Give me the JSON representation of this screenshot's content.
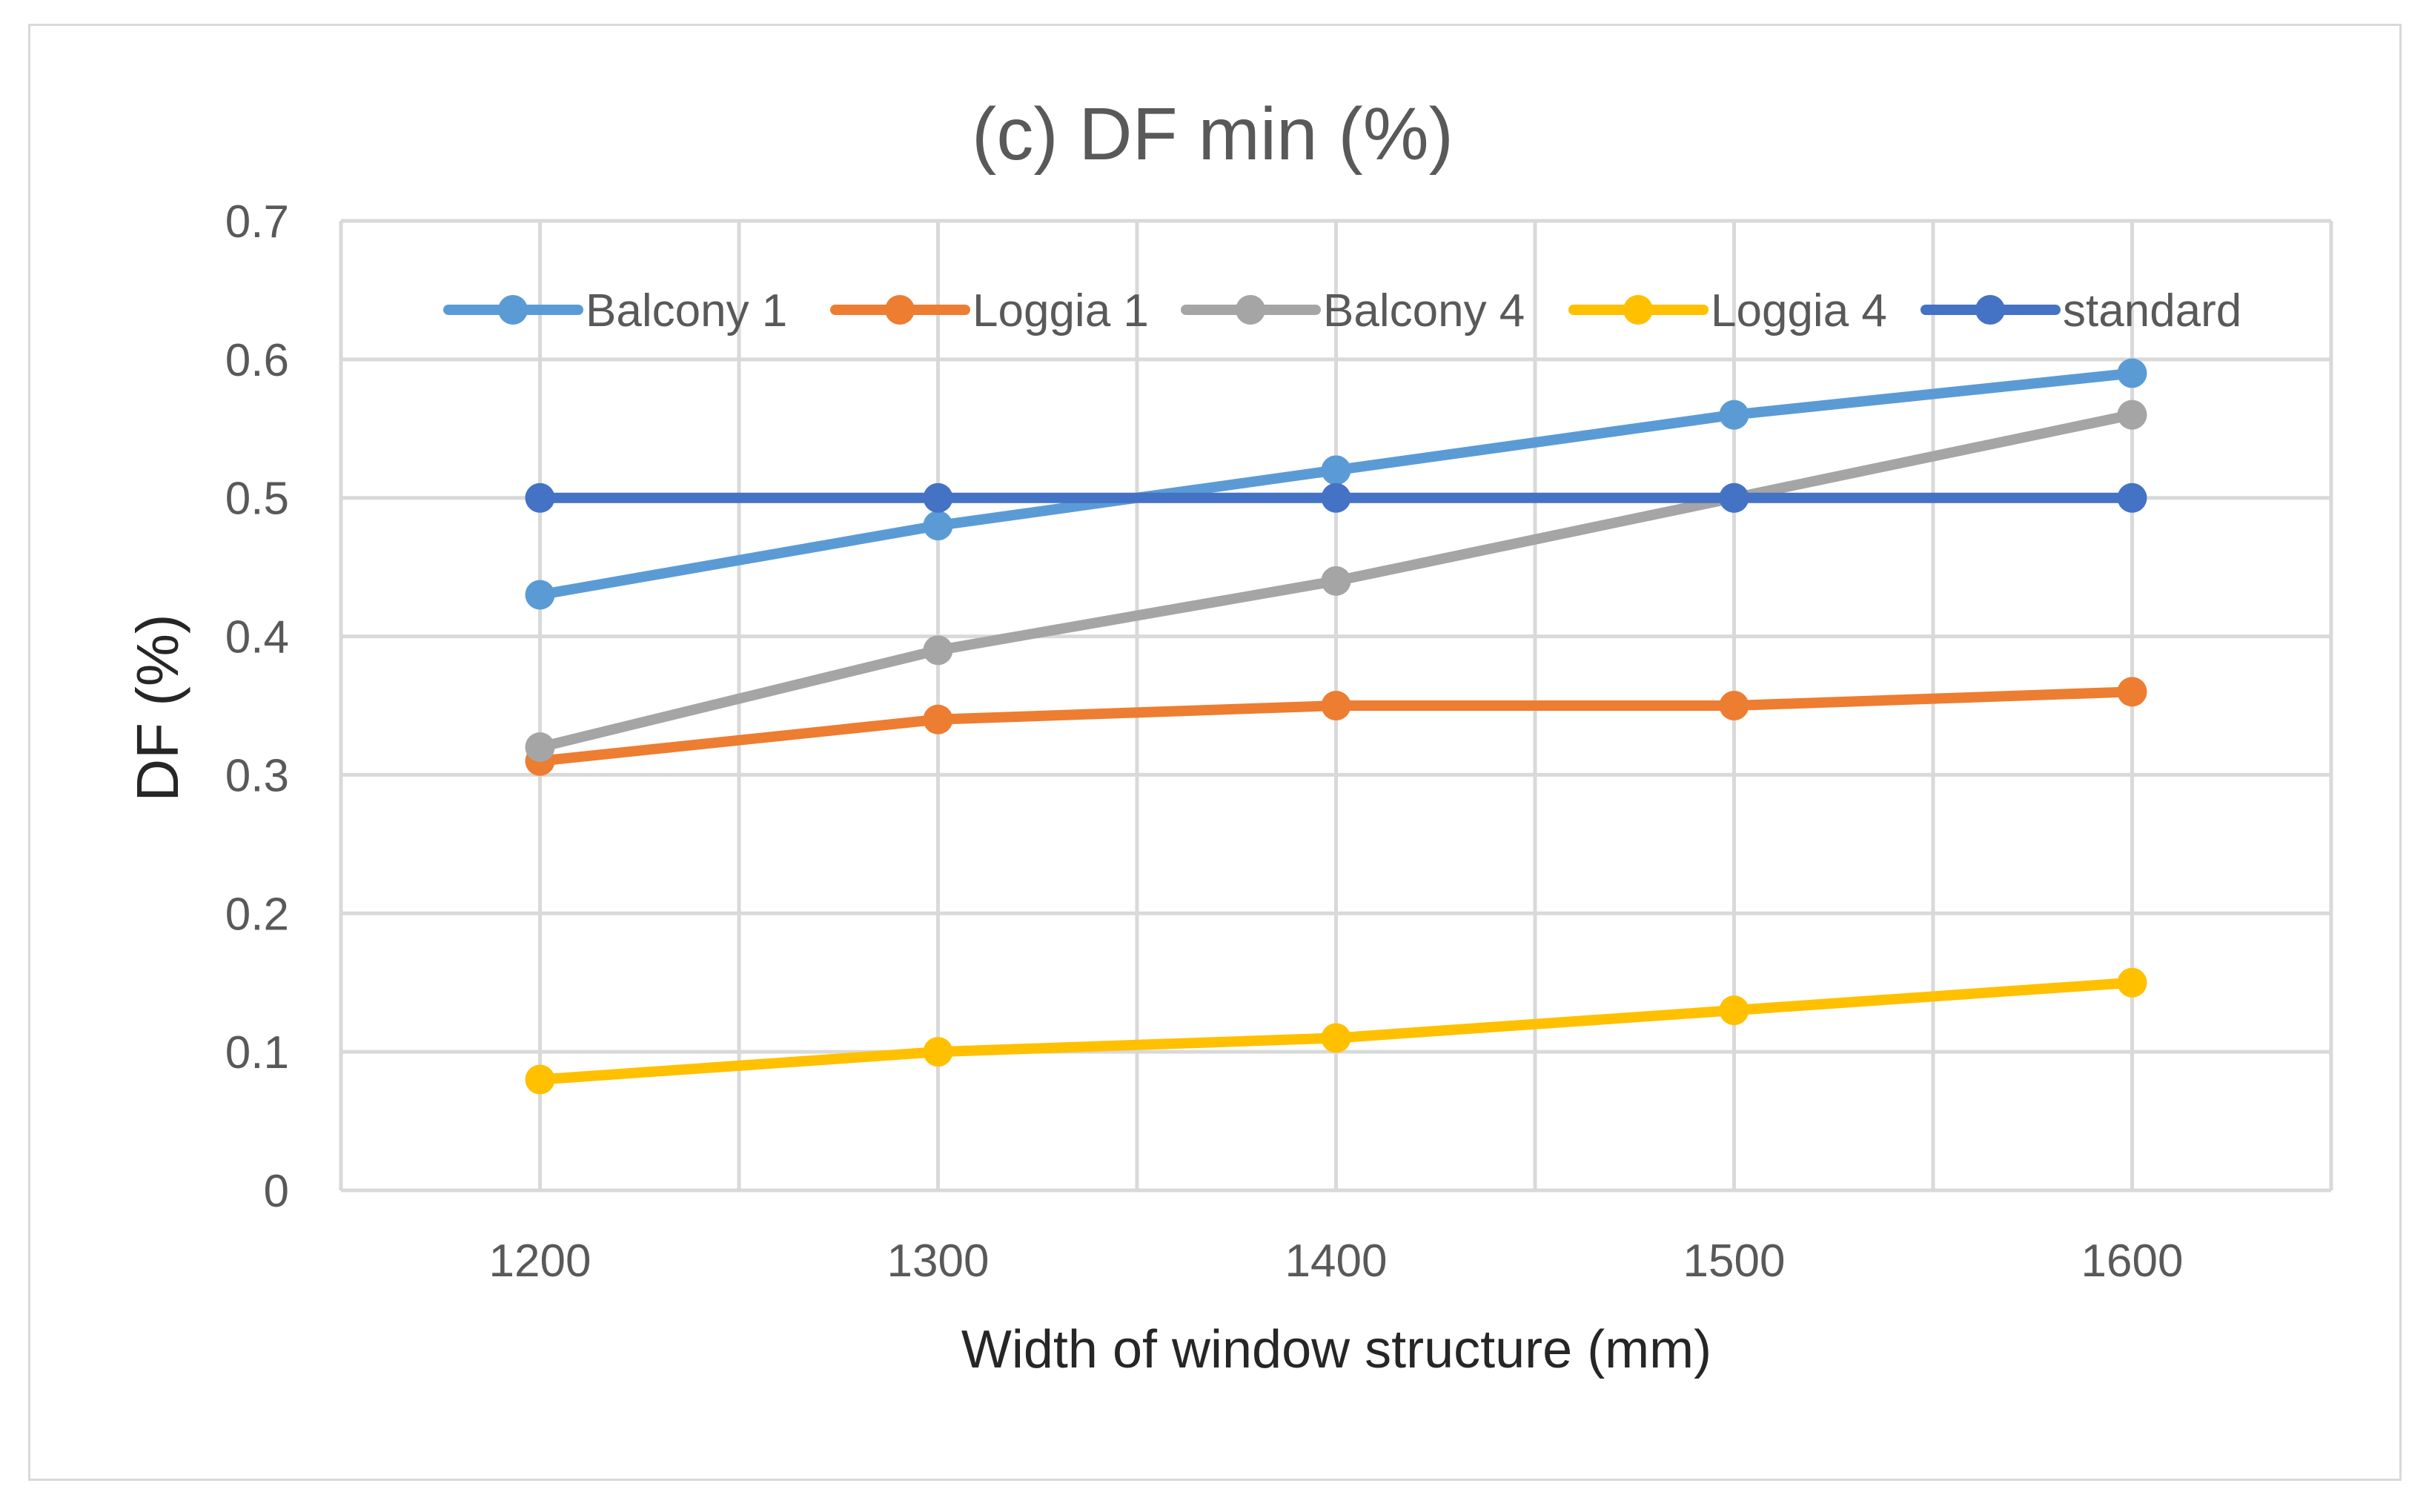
{
  "chart_data": {
    "type": "line",
    "title": "(c) DF min (%)",
    "xlabel": "Width of window structure (mm)",
    "ylabel": "DF (%)",
    "categories": [
      "1200",
      "1300",
      "1400",
      "1500",
      "1600"
    ],
    "ylim": [
      0,
      0.7
    ],
    "yticks": [
      "0",
      "0.1",
      "0.2",
      "0.3",
      "0.4",
      "0.5",
      "0.6",
      "0.7"
    ],
    "grid": true,
    "legend_position": "top",
    "series": [
      {
        "name": "Balcony 1",
        "color": "#5b9bd5",
        "values": [
          0.43,
          0.48,
          0.52,
          0.56,
          0.59
        ]
      },
      {
        "name": "Loggia 1",
        "color": "#ed7d31",
        "values": [
          0.31,
          0.34,
          0.35,
          0.35,
          0.36
        ]
      },
      {
        "name": "Balcony 4",
        "color": "#a5a5a5",
        "values": [
          0.32,
          0.39,
          0.44,
          0.5,
          0.56
        ]
      },
      {
        "name": "Loggia 4",
        "color": "#ffc000",
        "values": [
          0.08,
          0.1,
          0.11,
          0.13,
          0.15
        ]
      },
      {
        "name": "standard",
        "color": "#4472c4",
        "values": [
          0.5,
          0.5,
          0.5,
          0.5,
          0.5
        ]
      }
    ]
  }
}
